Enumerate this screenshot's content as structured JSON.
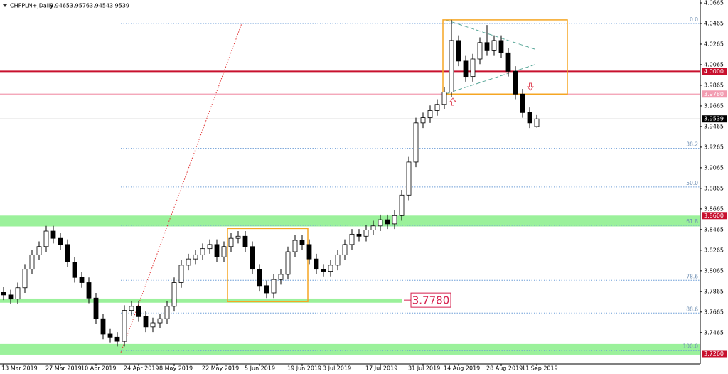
{
  "chart_data": {
    "type": "candlestick",
    "symbol": "CHFPLN+,Daily",
    "categories": [
      "13 Mar 2019",
      null,
      null,
      null,
      null,
      null,
      null,
      null,
      "27 Mar 2019",
      null,
      null,
      null,
      null,
      "10 Apr 2019",
      null,
      null,
      null,
      null,
      null,
      "24 Apr 2019",
      null,
      null,
      null,
      null,
      "8 May 2019",
      null,
      null,
      null,
      null,
      null,
      "22 May 2019",
      null,
      null,
      null,
      null,
      null,
      "5 Jun 2019",
      null,
      null,
      null,
      null,
      null,
      "19 Jun 2019",
      null,
      null,
      null,
      null,
      "3 Jul 2019",
      null,
      null,
      null,
      null,
      null,
      "17 Jul 2019",
      null,
      null,
      null,
      null,
      null,
      "31 Jul 2019",
      null,
      null,
      null,
      null,
      "14 Aug 2019",
      null,
      null,
      null,
      null,
      null,
      "28 Aug 2019",
      null,
      null,
      null,
      null,
      "11 Sep 2019"
    ],
    "open": [
      3.786,
      3.783,
      3.779,
      3.79,
      3.808,
      3.822,
      3.83,
      3.845,
      3.838,
      3.832,
      3.815,
      3.8,
      3.795,
      3.78,
      3.76,
      3.745,
      3.742,
      3.738,
      3.768,
      3.772,
      3.762,
      3.752,
      3.756,
      3.76,
      3.772,
      3.795,
      3.812,
      3.818,
      3.822,
      3.828,
      3.832,
      3.82,
      3.83,
      3.838,
      3.84,
      3.83,
      3.808,
      3.792,
      3.785,
      3.798,
      3.803,
      3.825,
      3.836,
      3.832,
      3.818,
      3.808,
      3.806,
      3.812,
      3.822,
      3.832,
      3.842,
      3.84,
      3.846,
      3.85,
      3.856,
      3.852,
      3.86,
      3.88,
      3.912,
      3.95,
      3.955,
      3.962,
      3.968,
      3.98,
      4.03,
      4.01,
      3.995,
      4.012,
      4.028,
      4.02,
      4.03,
      4.018,
      4.0,
      3.978,
      3.96,
      3.9465
    ],
    "high": [
      3.791,
      3.788,
      3.795,
      3.813,
      3.827,
      3.835,
      3.85,
      3.85,
      3.843,
      3.837,
      3.82,
      3.805,
      3.8,
      3.785,
      3.765,
      3.75,
      3.747,
      3.773,
      3.777,
      3.777,
      3.767,
      3.761,
      3.765,
      3.777,
      3.8,
      3.817,
      3.823,
      3.827,
      3.833,
      3.837,
      3.837,
      3.835,
      3.843,
      3.845,
      3.845,
      3.835,
      3.813,
      3.797,
      3.803,
      3.808,
      3.83,
      3.841,
      3.841,
      3.837,
      3.823,
      3.813,
      3.817,
      3.827,
      3.837,
      3.847,
      3.847,
      3.851,
      3.855,
      3.861,
      3.861,
      3.865,
      3.885,
      3.917,
      3.955,
      3.96,
      3.967,
      3.973,
      3.985,
      4.05,
      4.035,
      4.015,
      4.017,
      4.033,
      4.045,
      4.035,
      4.035,
      4.023,
      4.005,
      3.983,
      3.965,
      3.9576
    ],
    "low": [
      3.778,
      3.774,
      3.774,
      3.785,
      3.803,
      3.817,
      3.825,
      3.833,
      3.827,
      3.81,
      3.795,
      3.79,
      3.775,
      3.755,
      3.74,
      3.737,
      3.733,
      3.733,
      3.763,
      3.757,
      3.747,
      3.747,
      3.751,
      3.755,
      3.767,
      3.79,
      3.807,
      3.813,
      3.817,
      3.823,
      3.815,
      3.815,
      3.825,
      3.833,
      3.825,
      3.803,
      3.787,
      3.78,
      3.78,
      3.793,
      3.798,
      3.82,
      3.827,
      3.813,
      3.803,
      3.801,
      3.801,
      3.807,
      3.817,
      3.827,
      3.835,
      3.835,
      3.841,
      3.845,
      3.847,
      3.847,
      3.855,
      3.875,
      3.907,
      3.945,
      3.95,
      3.957,
      3.963,
      3.975,
      4.005,
      3.99,
      3.99,
      4.007,
      4.015,
      4.015,
      4.013,
      3.995,
      3.973,
      3.955,
      3.945,
      3.9454
    ],
    "close": [
      3.783,
      3.779,
      3.79,
      3.808,
      3.822,
      3.83,
      3.845,
      3.838,
      3.832,
      3.815,
      3.8,
      3.795,
      3.78,
      3.76,
      3.745,
      3.742,
      3.738,
      3.768,
      3.772,
      3.762,
      3.752,
      3.756,
      3.76,
      3.772,
      3.795,
      3.812,
      3.818,
      3.822,
      3.828,
      3.832,
      3.82,
      3.83,
      3.838,
      3.84,
      3.83,
      3.808,
      3.792,
      3.785,
      3.798,
      3.803,
      3.825,
      3.836,
      3.832,
      3.818,
      3.808,
      3.806,
      3.812,
      3.822,
      3.832,
      3.842,
      3.84,
      3.846,
      3.85,
      3.856,
      3.852,
      3.86,
      3.88,
      3.912,
      3.95,
      3.955,
      3.962,
      3.968,
      3.98,
      4.03,
      4.01,
      3.995,
      4.012,
      4.028,
      4.02,
      4.03,
      4.018,
      4.0,
      3.978,
      3.96,
      3.95,
      3.9539
    ],
    "ylim": [
      3.716,
      4.0665
    ],
    "yticks": [
      4.0665,
      4.0465,
      4.0265,
      4.0065,
      3.9865,
      3.9665,
      3.9465,
      3.9265,
      3.9065,
      3.8865,
      3.8665,
      3.8465,
      3.8265,
      3.8065,
      3.7865,
      3.7665,
      3.7465
    ],
    "grid": false,
    "bull_color": "#ffffff",
    "bear_color": "#000000",
    "levels": [
      {
        "value": 4,
        "label": "4.0000",
        "color": "#c8102e"
      },
      {
        "value": 3.978,
        "label": "3.9780",
        "color": "#f29bb0"
      },
      {
        "value": 3.86,
        "label": "3.8600",
        "color": "#c8102e"
      },
      {
        "value": 3.726,
        "label": "3.7260",
        "color": "#c8102e"
      }
    ],
    "zones": [
      {
        "from": 3.86,
        "to": 3.8495,
        "color": "#90f090"
      },
      {
        "from": 3.7795,
        "to": 3.7755,
        "color": "#90f090"
      },
      {
        "from": 3.7354,
        "to": 3.725,
        "color": "#90f090"
      }
    ],
    "zone_label": {
      "value": 3.778,
      "label": "3.7780",
      "color": "#d6204e"
    },
    "fibonacci": [
      {
        "label": "0.0",
        "value": 4.0465
      },
      {
        "label": "38.2",
        "value": 3.9253
      },
      {
        "label": "50.0",
        "value": 3.8879
      },
      {
        "label": "61.8",
        "value": 3.8505
      },
      {
        "label": "78.6",
        "value": 3.7972
      },
      {
        "label": "88.6",
        "value": 3.7655
      },
      {
        "label": "100.0",
        "value": 3.7293
      }
    ],
    "boxes": [
      {
        "top": 3.8475,
        "bottom": 3.7765,
        "color": "#f5a623"
      },
      {
        "top": 4.05,
        "bottom": 3.978,
        "color": "#f5a623"
      }
    ],
    "trend_line": {
      "from": 3.7272,
      "to": 4.0465,
      "color": "#e03030"
    }
  }
}
